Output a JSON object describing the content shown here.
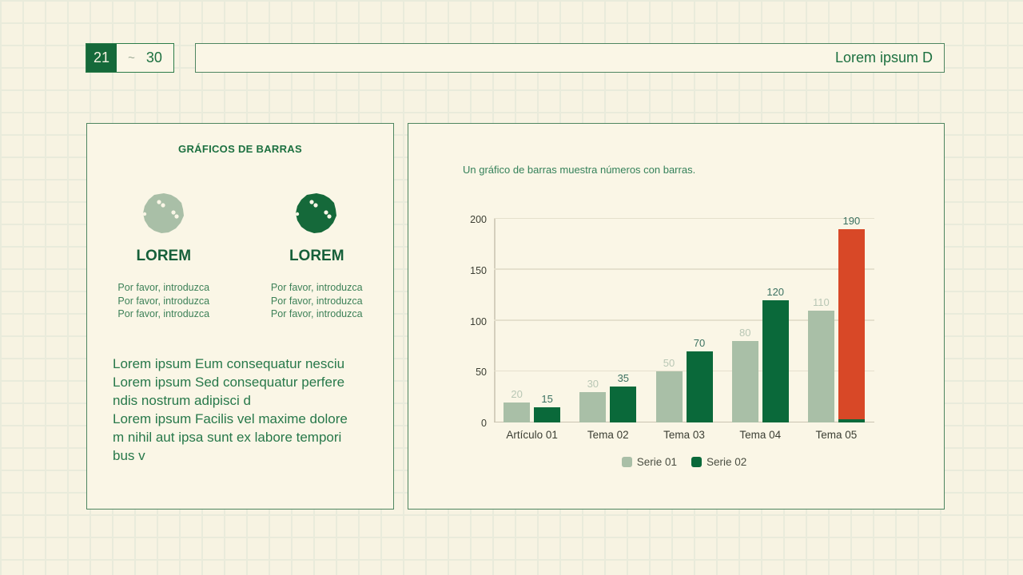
{
  "header": {
    "badge": {
      "start": "21",
      "tilde": "~",
      "end": "30"
    },
    "title": "Lorem ipsum D"
  },
  "left_panel": {
    "heading": "GRÁFICOS DE BARRAS",
    "features": [
      {
        "icon": "blob-splat-icon",
        "icon_color": "#a9bfa7",
        "label": "LOREM",
        "lines": [
          "Por favor, introduzca",
          "Por favor, introduzca",
          "Por favor, introduzca"
        ]
      },
      {
        "icon": "blob-splat-icon",
        "icon_color": "#15693a",
        "label": "LOREM",
        "lines": [
          "Por favor, introduzca",
          "Por favor, introduzca",
          "Por favor, introduzca"
        ]
      }
    ],
    "paragraph": "Lorem ipsum Eum consequatur nesciu\nLorem ipsum Sed consequatur perfere\nndis nostrum adipisci d\nLorem ipsum Facilis vel maxime dolore\nm nihil aut ipsa sunt ex labore tempori\nbus v"
  },
  "right_panel": {
    "subtitle": "Un gráfico de barras muestra números con barras."
  },
  "chart_data": {
    "type": "bar",
    "title": "Un gráfico de barras muestra números con barras.",
    "categories": [
      "Artículo 01",
      "Tema 02",
      "Tema 03",
      "Tema 04",
      "Tema 05"
    ],
    "series": [
      {
        "name": "Serie 01",
        "values": [
          20,
          30,
          50,
          80,
          110
        ],
        "color": "#a9bfa7"
      },
      {
        "name": "Serie 02",
        "values": [
          15,
          35,
          70,
          120,
          190
        ],
        "color": "#0a693a"
      }
    ],
    "highlight": {
      "series_index": 1,
      "category_index": 4,
      "color": "#d84827"
    },
    "xlabel": "",
    "ylabel": "",
    "ylim": [
      0,
      200
    ],
    "yticks": [
      0,
      50,
      100,
      150,
      200
    ],
    "grid": true,
    "legend_position": "bottom"
  },
  "colors": {
    "accent_dark_green": "#15693a",
    "accent_sage": "#a9bfa7",
    "accent_red": "#d84827",
    "text_green": "#1c7040",
    "panel_background": "#faf6e6",
    "page_background": "#f7f3e2"
  }
}
